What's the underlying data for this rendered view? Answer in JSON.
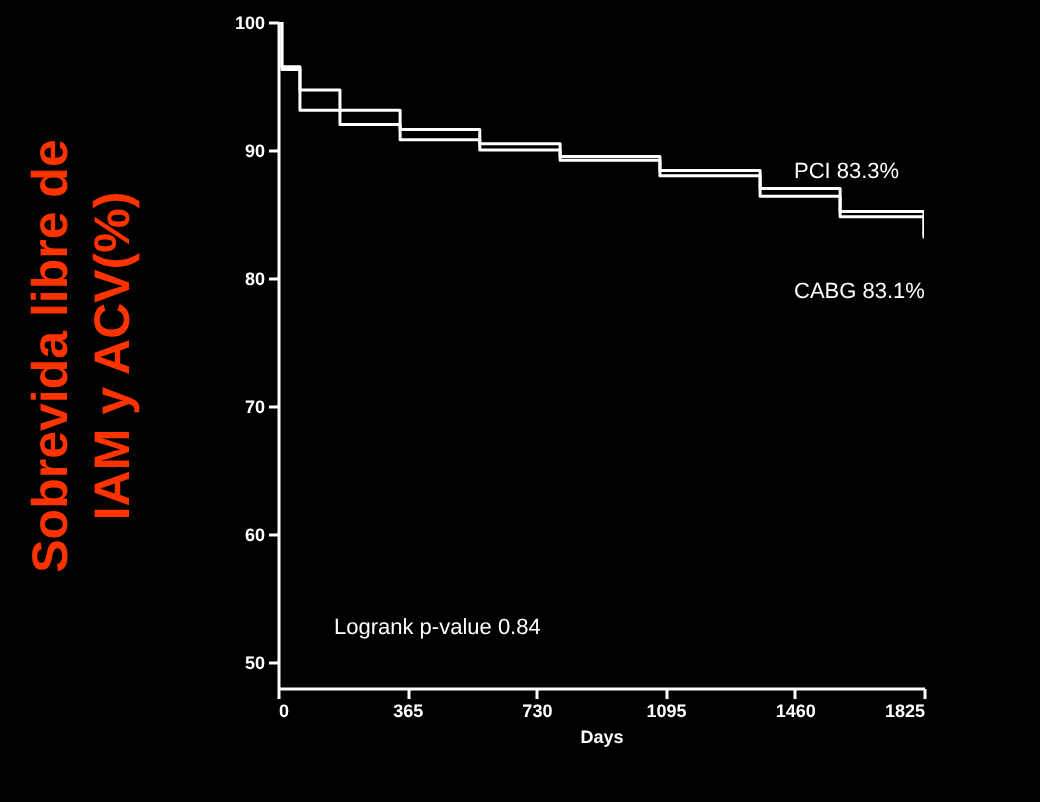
{
  "chart_data": {
    "type": "step",
    "xlabel": "Days",
    "ylabel": "Sobrevida libre de IAM y ACV(%)",
    "xlim": [
      0,
      1825
    ],
    "xticks": [
      0,
      365,
      730,
      1095,
      1460,
      1825
    ],
    "ylim": [
      48,
      100
    ],
    "yticks": [
      100,
      90,
      80,
      70,
      60,
      50
    ],
    "grid": false,
    "series": [
      {
        "name": "PCI 83.3%",
        "color": "#ffffff",
        "x": [
          0,
          11,
          62,
          175,
          345,
          570,
          797,
          1079,
          1362,
          1588,
          1825
        ],
        "values": [
          100,
          96.3,
          93.1,
          92,
          90.8,
          90,
          89.2,
          88.4,
          87,
          85.2,
          83.3
        ]
      },
      {
        "name": "CABG 83.1%",
        "color": "#ffffff",
        "x": [
          0,
          11,
          62,
          175,
          345,
          570,
          797,
          1079,
          1362,
          1588,
          1825
        ],
        "values": [
          100,
          96.5,
          94.7,
          93.1,
          91.6,
          90.5,
          89.5,
          88,
          86.4,
          84.8,
          83.1
        ]
      }
    ],
    "annotations": [
      "Logrank p-value 0.84"
    ]
  }
}
